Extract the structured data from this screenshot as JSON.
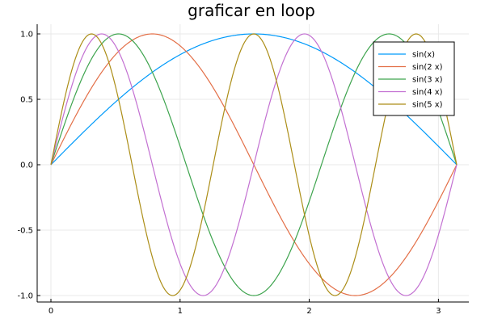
{
  "chart_data": {
    "type": "line",
    "title": "graficar en loop",
    "xlabel": "",
    "ylabel": "",
    "xlim": [
      0,
      3.14159
    ],
    "ylim": [
      -1.0,
      1.0
    ],
    "x_ticks": [
      0,
      1,
      2,
      3
    ],
    "x_tick_labels": [
      "0",
      "1",
      "2",
      "3"
    ],
    "y_ticks": [
      -1.0,
      -0.5,
      0.0,
      0.5,
      1.0
    ],
    "y_tick_labels": [
      "-1.0",
      "-0.5",
      "0.0",
      "0.5",
      "1.0"
    ],
    "grid": true,
    "legend_position": "top-right",
    "series": [
      {
        "name": "sin(x)",
        "frequency": 1,
        "color": "#009AFA"
      },
      {
        "name": "sin(2 x)",
        "frequency": 2,
        "color": "#E36F47"
      },
      {
        "name": "sin(3 x)",
        "frequency": 3,
        "color": "#3EA44E"
      },
      {
        "name": "sin(4 x)",
        "frequency": 4,
        "color": "#C371D2"
      },
      {
        "name": "sin(5 x)",
        "frequency": 5,
        "color": "#AC8E18"
      }
    ]
  }
}
